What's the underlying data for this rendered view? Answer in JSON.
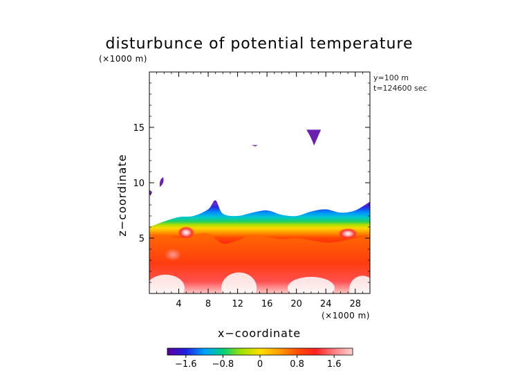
{
  "chart_data": {
    "type": "heatmap",
    "title": "disturbunce of potential temperature",
    "xlabel": "x−coordinate",
    "ylabel": "z−coordinate",
    "x_unit": "(×1000 m)",
    "z_unit": "(×1000 m)",
    "xlim": [
      0,
      30
    ],
    "ylim": [
      0,
      20
    ],
    "x_ticks": [
      4,
      8,
      12,
      16,
      20,
      24,
      28
    ],
    "x_tick_labels": [
      "4",
      "8",
      "12",
      "16",
      "20",
      "24",
      "28"
    ],
    "y_ticks": [
      5,
      10,
      15
    ],
    "y_tick_labels": [
      "5",
      "10",
      "15"
    ],
    "info_lines": [
      "y=100 m",
      "t=124600 sec"
    ],
    "colorbar": {
      "range": [
        -2.0,
        2.0
      ],
      "ticks": [
        -1.6,
        -0.8,
        0,
        0.8,
        1.6
      ],
      "tick_labels": [
        "−1.6",
        "−0.8",
        "0",
        "0.8",
        "1.6"
      ],
      "colors": [
        "#5a00a0",
        "#2020e0",
        "#00a0ff",
        "#00d080",
        "#a0e000",
        "#ffe000",
        "#ffa000",
        "#ff5000",
        "#ff2020",
        "#ff8080",
        "#ffd0d0"
      ]
    },
    "field": {
      "interface_top_z": [
        [
          0,
          6.0
        ],
        [
          2,
          6.5
        ],
        [
          4,
          6.9
        ],
        [
          6,
          7.0
        ],
        [
          8,
          7.6
        ],
        [
          9,
          8.4
        ],
        [
          10,
          7.2
        ],
        [
          12,
          7.0
        ],
        [
          14,
          7.3
        ],
        [
          16,
          7.5
        ],
        [
          18,
          7.1
        ],
        [
          20,
          7.0
        ],
        [
          22,
          7.4
        ],
        [
          24,
          7.6
        ],
        [
          26,
          7.3
        ],
        [
          28,
          7.5
        ],
        [
          30,
          8.3
        ]
      ],
      "warm_layer_top_z": [
        [
          0,
          5.2
        ],
        [
          2,
          5.3
        ],
        [
          4,
          5.0
        ],
        [
          6,
          5.3
        ],
        [
          8,
          5.4
        ],
        [
          10,
          4.5
        ],
        [
          12,
          4.8
        ],
        [
          14,
          5.3
        ],
        [
          16,
          5.1
        ],
        [
          18,
          4.9
        ],
        [
          20,
          5.0
        ],
        [
          22,
          4.8
        ],
        [
          24,
          4.6
        ],
        [
          26,
          4.7
        ],
        [
          28,
          5.0
        ],
        [
          30,
          5.2
        ]
      ],
      "cold_blobs": [
        {
          "x": 22.3,
          "z": 14.6,
          "value": -1.9
        },
        {
          "x": 1.7,
          "z": 10.0,
          "value": -1.8
        },
        {
          "x": 0.1,
          "z": 9.1,
          "value": -1.8
        },
        {
          "x": 14.2,
          "z": 13.4,
          "value": -1.8
        }
      ],
      "warm_blobs": [
        {
          "x": 27.0,
          "z": 5.4,
          "value": 2.0
        },
        {
          "x": 5.0,
          "z": 5.5,
          "value": 1.9
        },
        {
          "x": 3.2,
          "z": 3.5,
          "value": 1.9
        }
      ]
    }
  }
}
